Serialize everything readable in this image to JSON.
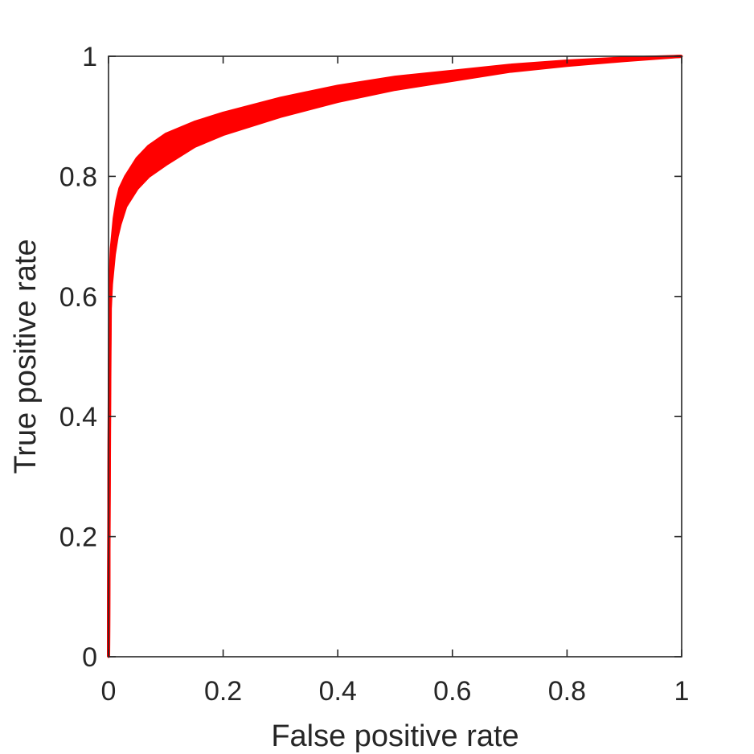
{
  "chart_data": {
    "type": "line",
    "title": "",
    "xlabel": "False positive rate",
    "ylabel": "True positive rate",
    "xlim": [
      0,
      1
    ],
    "ylim": [
      0,
      1
    ],
    "xticks": [
      0,
      0.2,
      0.4,
      0.6,
      0.8,
      1
    ],
    "yticks": [
      0,
      0.2,
      0.4,
      0.6,
      0.8,
      1
    ],
    "xtick_labels": [
      "0",
      "0.2",
      "0.4",
      "0.6",
      "0.8",
      "1"
    ],
    "ytick_labels": [
      "0",
      "0.2",
      "0.4",
      "0.6",
      "0.8",
      "1"
    ],
    "grid": false,
    "legend": "none",
    "color": "#ff0000",
    "style": "band of many overlapping ROC curves",
    "series": [
      {
        "x": [
          0,
          0.001,
          0.002,
          0.003,
          0.005,
          0.01,
          0.015,
          0.02,
          0.03,
          0.05,
          0.07,
          0.1,
          0.15,
          0.2,
          0.3,
          0.4,
          0.5,
          0.6,
          0.7,
          0.8,
          0.9,
          1.0
        ],
        "y": [
          0,
          0.3,
          0.5,
          0.6,
          0.65,
          0.7,
          0.73,
          0.75,
          0.78,
          0.81,
          0.83,
          0.85,
          0.875,
          0.895,
          0.92,
          0.94,
          0.955,
          0.97,
          0.98,
          0.99,
          0.995,
          1.0
        ]
      },
      {
        "x": [
          0,
          0.001,
          0.002,
          0.003,
          0.005,
          0.01,
          0.015,
          0.02,
          0.03,
          0.05,
          0.07,
          0.1,
          0.15,
          0.2,
          0.3,
          0.4,
          0.5,
          0.6,
          0.7,
          0.8,
          0.9,
          1.0
        ],
        "y": [
          0,
          0.25,
          0.45,
          0.58,
          0.62,
          0.67,
          0.7,
          0.72,
          0.75,
          0.78,
          0.8,
          0.82,
          0.85,
          0.87,
          0.9,
          0.925,
          0.945,
          0.96,
          0.975,
          0.985,
          0.993,
          1.0
        ]
      },
      {
        "x": [
          0,
          0.001,
          0.002,
          0.003,
          0.005,
          0.01,
          0.015,
          0.02,
          0.03,
          0.05,
          0.07,
          0.1,
          0.15,
          0.2,
          0.3,
          0.4,
          0.5,
          0.6,
          0.7,
          0.8,
          0.9,
          1.0
        ],
        "y": [
          0,
          0.35,
          0.55,
          0.63,
          0.68,
          0.73,
          0.76,
          0.78,
          0.8,
          0.83,
          0.85,
          0.87,
          0.89,
          0.905,
          0.93,
          0.95,
          0.965,
          0.975,
          0.985,
          0.992,
          0.997,
          1.0
        ]
      }
    ]
  }
}
